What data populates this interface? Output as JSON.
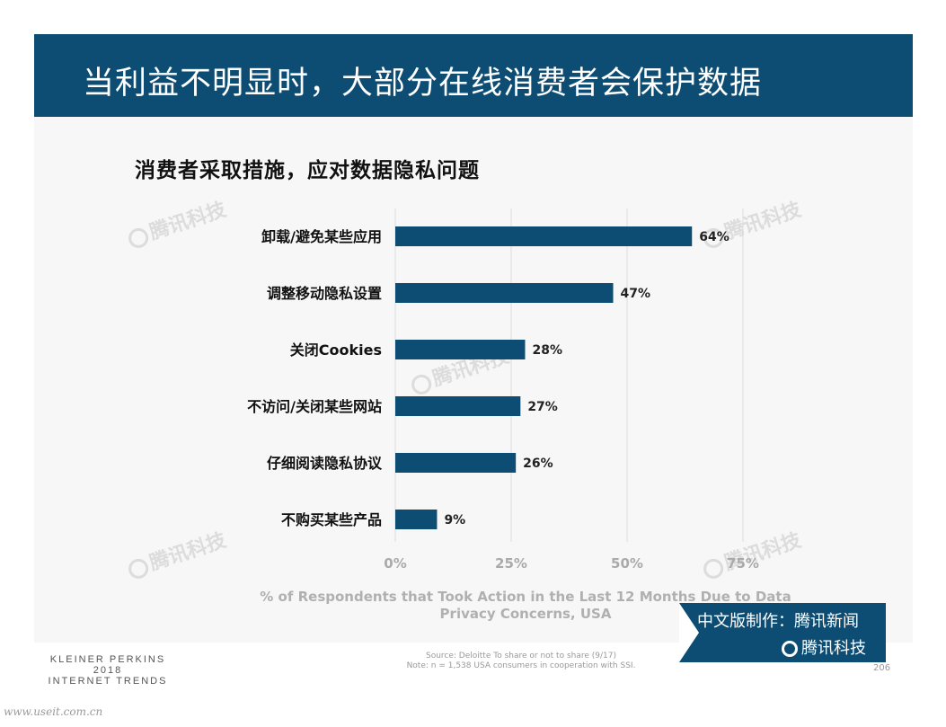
{
  "header": {
    "title": "当利益不明显时，大部分在线消费者会保护数据"
  },
  "chart_data": {
    "type": "bar",
    "orientation": "horizontal",
    "title": "消费者采取措施，应对数据隐私问题",
    "categories": [
      "卸载/避免某些应用",
      "调整移动隐私设置",
      "关闭Cookies",
      "不访问/关闭某些网站",
      "仔细阅读隐私协议",
      "不购买某些产品"
    ],
    "values": [
      64,
      47,
      28,
      27,
      26,
      9
    ],
    "value_labels": [
      "64%",
      "47%",
      "28%",
      "27%",
      "26%",
      "9%"
    ],
    "xticks": [
      "0%",
      "25%",
      "50%",
      "75%"
    ],
    "xlim": [
      0,
      75
    ],
    "xlabel_line1": "% of Respondents that Took Action in the Last 12 Months Due to Data",
    "xlabel_line2": "Privacy Concerns, USA",
    "grid": true,
    "bar_color": "#0e4d73"
  },
  "watermark": {
    "text": "腾讯科技"
  },
  "footer": {
    "brand_line1": "KLEINER PERKINS",
    "brand_line2": "2018",
    "brand_line3": "INTERNET TRENDS",
    "source_line1": "Source: Deloitte To share or not to share (9/17)",
    "source_line2": "Note: n = 1,538 USA consumers in cooperation with SSI.",
    "page_number": "206",
    "site": "www.useit.com.cn"
  },
  "badge": {
    "line1": "中文版制作：腾讯新闻",
    "line2": "腾讯科技"
  }
}
